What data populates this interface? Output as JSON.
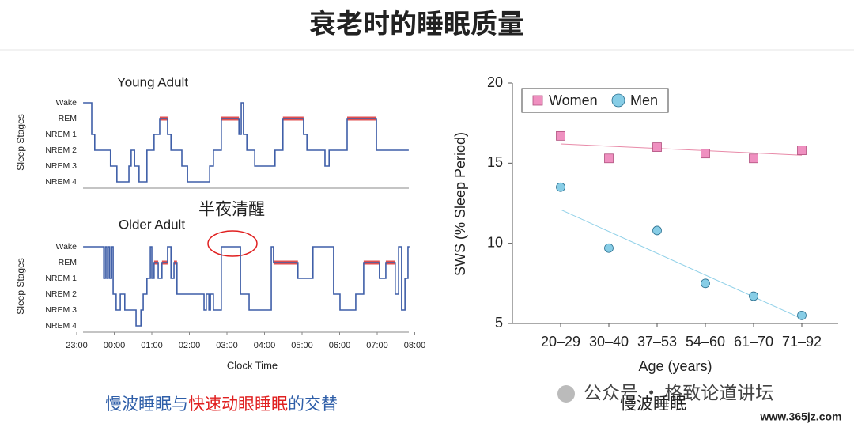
{
  "title": "衰老时的睡眠质量",
  "chart_data": [
    {
      "type": "step",
      "title": "Young Adult",
      "ylabel": "Sleep Stages",
      "color": "#3f5fa8",
      "rem_color": "#e05050",
      "rem_value": 1,
      "yticks": [
        {
          "value": 0,
          "label": "Wake"
        },
        {
          "value": 1,
          "label": "REM"
        },
        {
          "value": 2,
          "label": "NREM 1"
        },
        {
          "value": 3,
          "label": "NREM 2"
        },
        {
          "value": 4,
          "label": "NREM 3"
        },
        {
          "value": 5,
          "label": "NREM 4"
        }
      ],
      "ylim": [
        5.4,
        -0.4
      ],
      "xlim": [
        0,
        9
      ],
      "x": [
        0.17,
        0.4,
        0.48,
        0.9,
        1.07,
        1.39,
        1.45,
        1.54,
        1.66,
        1.87,
        2.06,
        2.21,
        2.42,
        2.51,
        2.8,
        2.95,
        3.54,
        3.64,
        3.85,
        4.32,
        4.38,
        4.44,
        4.53,
        4.74,
        5.28,
        5.49,
        6.04,
        6.13,
        6.61,
        6.72,
        7.2,
        7.98,
        8.84
      ],
      "values": [
        0,
        2,
        3,
        4,
        5,
        4,
        3,
        4,
        5,
        3,
        2,
        1,
        2,
        3,
        4,
        5,
        4,
        3,
        1,
        2,
        0,
        2,
        3,
        4,
        3,
        1,
        2,
        3,
        4,
        3,
        1,
        3,
        3
      ]
    },
    {
      "type": "step",
      "title": "Older Adult",
      "ylabel": "Sleep Stages",
      "xlabel": "Clock Time",
      "color": "#3f5fa8",
      "rem_color": "#e05050",
      "rem_value": 1,
      "annotation": {
        "text": "半夜清醒",
        "color": "#e02020"
      },
      "yticks": [
        {
          "value": 0,
          "label": "Wake"
        },
        {
          "value": 1,
          "label": "REM"
        },
        {
          "value": 2,
          "label": "NREM 1"
        },
        {
          "value": 3,
          "label": "NREM 2"
        },
        {
          "value": 4,
          "label": "NREM 3"
        },
        {
          "value": 5,
          "label": "NREM 4"
        }
      ],
      "ylim": [
        5.4,
        -0.4
      ],
      "xlim": [
        0,
        9
      ],
      "xticks": [
        {
          "value": 0,
          "label": "23:00"
        },
        {
          "value": 1,
          "label": "00:00"
        },
        {
          "value": 2,
          "label": "01:00"
        },
        {
          "value": 3,
          "label": "02:00"
        },
        {
          "value": 4,
          "label": "03:00"
        },
        {
          "value": 5,
          "label": "04:00"
        },
        {
          "value": 6,
          "label": "05:00"
        },
        {
          "value": 7,
          "label": "06:00"
        },
        {
          "value": 8,
          "label": "07:00"
        },
        {
          "value": 9,
          "label": "08:00"
        }
      ],
      "x": [
        0.17,
        0.72,
        0.76,
        0.8,
        0.84,
        0.88,
        0.93,
        0.97,
        1.05,
        1.16,
        1.28,
        1.58,
        1.71,
        1.77,
        1.87,
        1.96,
        2.0,
        2.06,
        2.17,
        2.27,
        2.42,
        2.51,
        2.59,
        2.67,
        3.39,
        3.45,
        3.52,
        3.56,
        3.64,
        3.85,
        4.36,
        4.59,
        5.18,
        5.24,
        5.89,
        6.29,
        6.84,
        7.01,
        7.43,
        7.64,
        8.06,
        8.23,
        8.48,
        8.57,
        8.65,
        8.74,
        8.82,
        8.86
      ],
      "values": [
        0,
        2,
        0,
        2,
        0,
        2,
        0,
        3,
        4,
        3,
        4,
        5,
        4,
        3,
        2,
        0,
        2,
        1,
        2,
        1,
        0,
        2,
        1,
        3,
        4,
        3,
        4,
        3,
        4,
        0,
        3,
        4,
        0,
        1,
        2,
        0,
        3,
        4,
        3,
        1,
        2,
        1,
        3,
        0,
        4,
        2,
        0,
        0
      ]
    },
    {
      "type": "scatter",
      "ylabel": "SWS (% Sleep Period)",
      "xlabel": "Age (years)",
      "categories": [
        "20–29",
        "30–40",
        "37–53",
        "54–60",
        "61–70",
        "71–92"
      ],
      "ylim": [
        5,
        20
      ],
      "yticks": [
        5,
        10,
        15,
        20
      ],
      "series": [
        {
          "name": "Women",
          "marker": "square",
          "color": "#ef90c0",
          "edge": "#b0507e",
          "trend_color": "#e88aa8",
          "values": [
            16.7,
            15.3,
            16.0,
            15.6,
            15.3,
            15.8
          ],
          "trend": [
            16.2,
            15.5
          ]
        },
        {
          "name": "Men",
          "marker": "circle",
          "color": "#87cde6",
          "edge": "#2a6f8f",
          "trend_color": "#8fd0e8",
          "values": [
            13.5,
            9.7,
            10.8,
            7.5,
            6.7,
            5.5
          ],
          "trend": [
            12.1,
            5.3
          ]
        }
      ]
    }
  ],
  "captions": {
    "left": [
      {
        "text": "慢波睡眠与",
        "color": "#2e5ea8"
      },
      {
        "text": "快速动眼睡眠",
        "color": "#e02020"
      },
      {
        "text": "的交替",
        "color": "#2e5ea8"
      }
    ],
    "right": {
      "text": "慢波睡眠",
      "color": "#2e5ea8"
    }
  },
  "watermark": {
    "account": "公众号 · 格致论道讲坛",
    "site": "www.365jz.com"
  }
}
